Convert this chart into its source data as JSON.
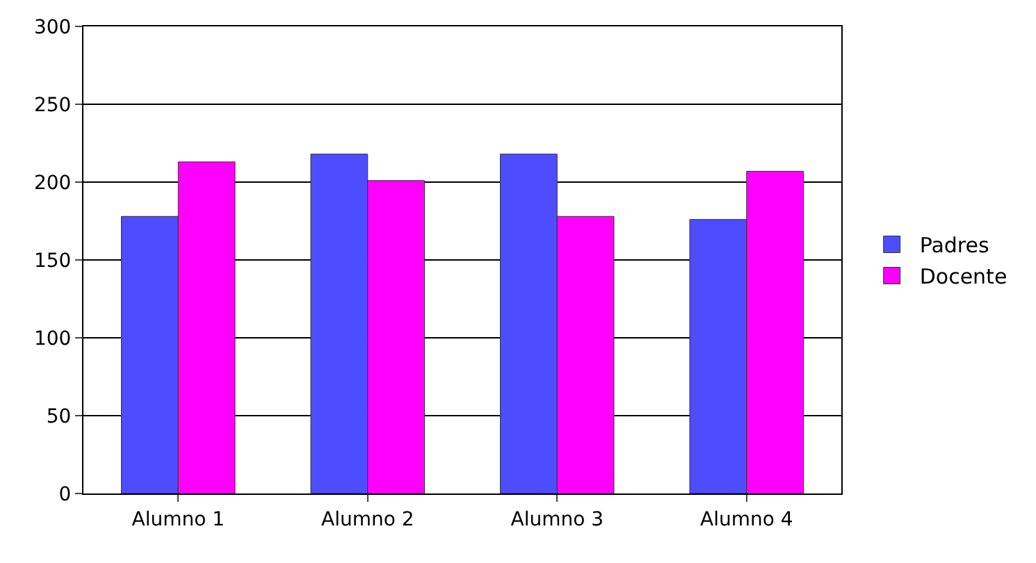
{
  "chart_data": {
    "type": "bar",
    "categories": [
      "Alumno 1",
      "Alumno 2",
      "Alumno 3",
      "Alumno 4"
    ],
    "series": [
      {
        "name": "Padres",
        "color": "#4d4dff",
        "values": [
          178,
          218,
          218,
          176
        ]
      },
      {
        "name": "Docente",
        "color": "#ff00ff",
        "values": [
          213,
          201,
          178,
          207
        ]
      }
    ],
    "ylim": [
      0,
      300
    ],
    "yticks": [
      0,
      50,
      100,
      150,
      200,
      250,
      300
    ],
    "grid": "y",
    "legend": "right"
  }
}
